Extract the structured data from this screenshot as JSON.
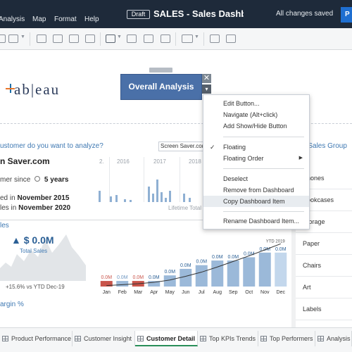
{
  "menubar": {
    "menus": [
      "Analysis",
      "Map",
      "Format",
      "Help"
    ],
    "draft_label": "Draft",
    "title": "SALES - Sales Dashboard",
    "save_status": "All changes saved",
    "publish_partial": "P"
  },
  "canvas": {
    "logo_text": "+ab|eau",
    "overall_button": "Overall Analysis",
    "close_glyph": "✕",
    "menu_glyph": "▾",
    "question": "ustomer do you want to analyze?",
    "site_selected": "Screen Saver.com",
    "customer_name": "n Saver.com",
    "customer_since_prefix": "mer since",
    "customer_since_value": "5 years",
    "joined_prefix": "ed in",
    "joined_value": "November 2015",
    "sales_prefix": "les in",
    "sales_value": "November 2020",
    "years": [
      "2.",
      "2016",
      "2017",
      "2018"
    ],
    "lifetime_label": "Lifetime Total",
    "sales_section": "les",
    "kpi_value": "$ 0.0M",
    "kpi_label": "Total Sales",
    "kpi_ytd": "+15.6% vs YTD Dec-19",
    "margin_section": "argin %",
    "ytd_marker": "YTD 2019",
    "right_title": "ch Sales Group",
    "right_items": [
      "Phones",
      "Bookcases",
      "Storage",
      "Paper",
      "Chairs",
      "Art",
      "Labels"
    ]
  },
  "context_menu": {
    "items": [
      {
        "label": "Edit Button...",
        "checked": false,
        "submenu": false,
        "highlight": false
      },
      {
        "label": "Navigate (Alt+click)",
        "checked": false,
        "submenu": false,
        "highlight": false
      },
      {
        "label": "Add Show/Hide Button",
        "checked": false,
        "submenu": false,
        "highlight": false
      },
      {
        "label": "Floating",
        "checked": true,
        "submenu": false,
        "highlight": false
      },
      {
        "label": "Floating Order",
        "checked": false,
        "submenu": true,
        "highlight": false
      },
      {
        "label": "Deselect",
        "checked": false,
        "submenu": false,
        "highlight": false
      },
      {
        "label": "Remove from Dashboard",
        "checked": false,
        "submenu": false,
        "highlight": false
      },
      {
        "label": "Copy Dashboard Item",
        "checked": false,
        "submenu": false,
        "highlight": true
      },
      {
        "label": "Rename Dashboard Item...",
        "checked": false,
        "submenu": false,
        "highlight": false
      }
    ]
  },
  "tabs": [
    {
      "label": "Product Performance",
      "active": false
    },
    {
      "label": "Customer Insight",
      "active": false
    },
    {
      "label": "Customer Detail",
      "active": true
    },
    {
      "label": "Top KPIs Trends",
      "active": false
    },
    {
      "label": "Top Performers",
      "active": false
    },
    {
      "label": "Analysis -",
      "active": false
    }
  ],
  "chart_data": {
    "type": "bar",
    "title": "",
    "xlabel": "",
    "ylabel": "",
    "categories": [
      "Jan",
      "Feb",
      "Mar",
      "Apr",
      "May",
      "Jun",
      "Jul",
      "Aug",
      "Sep",
      "Oct",
      "Nov",
      "Dec"
    ],
    "data_labels": [
      "0.0M",
      "0.0M",
      "0.0M",
      "0.0M",
      "0.0M",
      "0.0M",
      "0.0M",
      "0.0M",
      "0.0M",
      "0.0M",
      "0.0M",
      "0.0M"
    ],
    "relative_heights": [
      0.12,
      0.12,
      0.12,
      0.12,
      0.24,
      0.38,
      0.46,
      0.56,
      0.56,
      0.63,
      0.73,
      0.73
    ],
    "bar_colors": [
      "#c9544a",
      "#9bb9d9",
      "#c9544a",
      "#9bb9d9",
      "#9bb9d9",
      "#9bb9d9",
      "#9bb9d9",
      "#9bb9d9",
      "#9bb9d9",
      "#9bb9d9",
      "#9bb9d9",
      "#c3d7ec"
    ],
    "label_colors": [
      "#c9544a",
      "#6f97c2",
      "#c9544a",
      "#2a5f95",
      "#2a5f95",
      "#2a5f95",
      "#2a5f95",
      "#2a5f95",
      "#2a5f95",
      "#2a5f95",
      "#2a5f95",
      "#2a5f95"
    ],
    "cumulative_line": [
      0.02,
      0.04,
      0.06,
      0.09,
      0.14,
      0.22,
      0.31,
      0.42,
      0.54,
      0.66,
      0.79,
      0.92
    ],
    "legend": "none",
    "grid": false
  }
}
